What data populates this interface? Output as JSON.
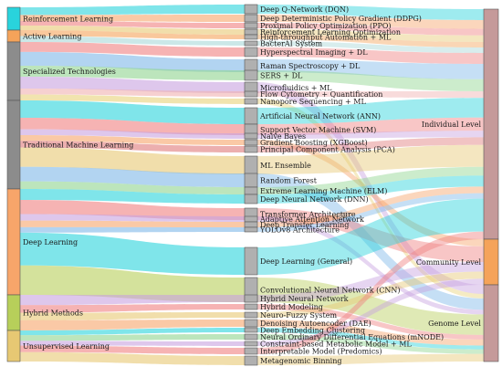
{
  "sankey": {
    "colors": {
      "rl": "#29d3dc",
      "al": "#f5a35a",
      "st": "#8c8c8c",
      "tml": "#8c8c8c",
      "dl": "#f7a56a",
      "hm": "#b7cf5a",
      "ul": "#e7c873",
      "right": "#c59a9a",
      "community": "#f5a35a"
    },
    "left_nodes": [
      {
        "id": "rl",
        "label": "Reinforcement Learning"
      },
      {
        "id": "al",
        "label": "Active Learning"
      },
      {
        "id": "st",
        "label": "Specialized Technologies"
      },
      {
        "id": "tml",
        "label": "Traditional Machine Learning"
      },
      {
        "id": "dl",
        "label": "Deep Learning"
      },
      {
        "id": "hm",
        "label": "Hybrid Methods"
      },
      {
        "id": "ul",
        "label": "Unsupervised Learning"
      }
    ],
    "middle_nodes": [
      {
        "label": "Deep Q-Network (DQN)",
        "parent": "rl",
        "color": "#29d3dc"
      },
      {
        "label": "Deep Deterministic Policy Gradient (DDPG)",
        "parent": "rl",
        "color": "#f7a56a"
      },
      {
        "label": "Proximal Policy Optimization (PPO)",
        "parent": "rl",
        "color": "#f08080"
      },
      {
        "label": "Reinforcement Learning Optimization",
        "parent": "rl",
        "color": "#e7c873"
      },
      {
        "label": "High-throughput Automation + ML",
        "parent": "al",
        "color": "#f5a35a"
      },
      {
        "label": "BacterAI System",
        "parent": "al",
        "color": "#a9d8d8"
      },
      {
        "label": "Hyperspectral Imaging + DL",
        "parent": "st",
        "color": "#f08080"
      },
      {
        "label": "Raman Spectroscopy + DL",
        "parent": "st",
        "color": "#7fb7e8"
      },
      {
        "label": "SERS + DL",
        "parent": "st",
        "color": "#8fd48f"
      },
      {
        "label": "Microfluidics + ML",
        "parent": "st",
        "color": "#c8a2e0"
      },
      {
        "label": "Flow Cytometry + Quantification",
        "parent": "st",
        "color": "#f0b0b0"
      },
      {
        "label": "Nanopore Sequencing + ML",
        "parent": "st",
        "color": "#e8d27a"
      },
      {
        "label": "Artificial Neural Network (ANN)",
        "parent": "tml",
        "color": "#29d3dc"
      },
      {
        "label": "Support Vector Machine (SVM)",
        "parent": "tml",
        "color": "#f08080"
      },
      {
        "label": "Naive Bayes",
        "parent": "tml",
        "color": "#c8a2e0"
      },
      {
        "label": "Gradient Boosting (XGBoost)",
        "parent": "tml",
        "color": "#f7a56a"
      },
      {
        "label": "Principal Component Analysis (PCA)",
        "parent": "tml",
        "color": "#e07a7a"
      },
      {
        "label": "ML Ensemble",
        "parent": "tml",
        "color": "#e7c873"
      },
      {
        "label": "Random Forest",
        "parent": "tml",
        "color": "#7fb7e8"
      },
      {
        "label": "Extreme Learning Machine (ELM)",
        "parent": "tml",
        "color": "#8fd48f"
      },
      {
        "label": "Deep Neural Network (DNN)",
        "parent": "dl",
        "color": "#29d3dc"
      },
      {
        "label": "Transformer Architecture",
        "parent": "dl",
        "color": "#f08080"
      },
      {
        "label": "Adaptive Attention Network",
        "parent": "dl",
        "color": "#c8a2e0"
      },
      {
        "label": "Deep Transfer Learning",
        "parent": "dl",
        "color": "#f7a56a"
      },
      {
        "label": "YOLOv8 Architecture",
        "parent": "dl",
        "color": "#7fb7e8"
      },
      {
        "label": "Deep Learning (General)",
        "parent": "dl",
        "color": "#29d3dc"
      },
      {
        "label": "Convolutional Neural Network (CNN)",
        "parent": "dl",
        "color": "#b7cf5a"
      },
      {
        "label": "Hybrid Neural Network",
        "parent": "hm",
        "color": "#c8a2e0"
      },
      {
        "label": "Hybrid Modeling",
        "parent": "hm",
        "color": "#f08080"
      },
      {
        "label": "Neuro-Fuzzy System",
        "parent": "hm",
        "color": "#e7c873"
      },
      {
        "label": "Denoising Autoencoder (DAE)",
        "parent": "hm",
        "color": "#f7a56a"
      },
      {
        "label": "Deep Embedding Clustering",
        "parent": "ul",
        "color": "#29d3dc"
      },
      {
        "label": "Neural Ordinary Differential Equations (mNODE)",
        "parent": "ul",
        "color": "#8fd48f"
      },
      {
        "label": "Constraint-based Metabolic Model + ML",
        "parent": "ul",
        "color": "#c8a2e0"
      },
      {
        "label": "Interpretable Model (Predomics)",
        "parent": "ul",
        "color": "#f08080"
      },
      {
        "label": "Metagenomic Binning",
        "parent": "ul",
        "color": "#e7c873"
      }
    ],
    "right_nodes": [
      {
        "id": "ind",
        "label": "Individual Level"
      },
      {
        "id": "com",
        "label": "Community Level"
      },
      {
        "id": "gen",
        "label": "Genome Level"
      }
    ]
  }
}
